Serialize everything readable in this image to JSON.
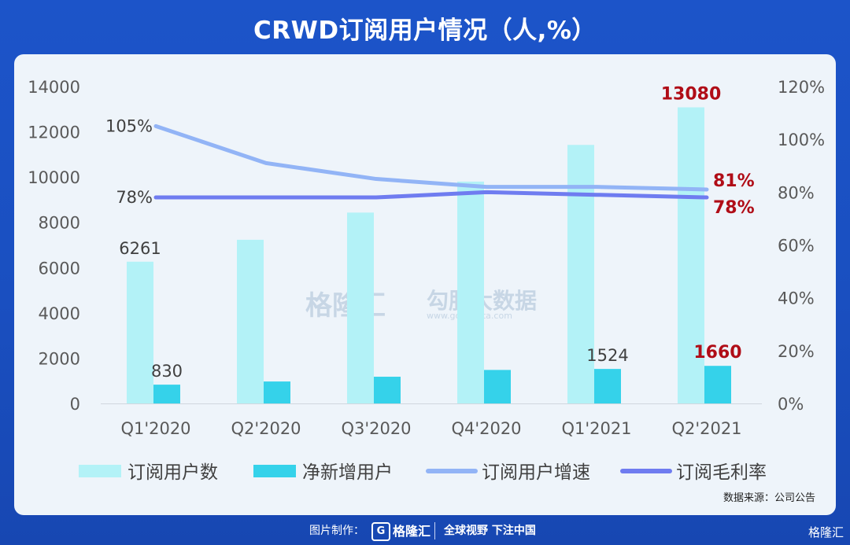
{
  "title": "CRWD订阅用户情况（人,%）",
  "source": "数据来源：公司公告",
  "footer": {
    "credit": "图片制作：",
    "logo_mark": "G",
    "logo_text": "格隆汇",
    "slogan": "全球视野 下注中国"
  },
  "corner_logo": "格隆汇",
  "watermarks": {
    "left": "格隆汇",
    "right": "勾股大数据",
    "right_url": "www.gogudata.com"
  },
  "chart_data": {
    "type": "bar",
    "categories": [
      "Q1'2020",
      "Q2'2020",
      "Q3'2020",
      "Q4'2020",
      "Q1'2021",
      "Q2'2021"
    ],
    "series": [
      {
        "name": "订阅用户数",
        "kind": "bar",
        "axis": "left",
        "color": "#b3f2f7",
        "values": [
          6261,
          7230,
          8430,
          9800,
          11420,
          13080
        ]
      },
      {
        "name": "净新增用户",
        "kind": "bar",
        "axis": "left",
        "color": "#35d2ea",
        "values": [
          830,
          970,
          1180,
          1480,
          1524,
          1660
        ]
      },
      {
        "name": "订阅用户增速",
        "kind": "line",
        "axis": "right",
        "color": "#92b4f6",
        "values": [
          105,
          91,
          85,
          82,
          82,
          81
        ]
      },
      {
        "name": "订阅毛利率",
        "kind": "line",
        "axis": "right",
        "color": "#6f7cf0",
        "values": [
          78,
          78,
          78,
          80,
          79,
          78
        ]
      }
    ],
    "left_axis": {
      "ylim": [
        0,
        14000
      ],
      "ticks": [
        0,
        2000,
        4000,
        6000,
        8000,
        10000,
        12000,
        14000
      ]
    },
    "right_axis": {
      "ylim": [
        0,
        120
      ],
      "ticks": [
        "0%",
        "20%",
        "40%",
        "60%",
        "80%",
        "100%",
        "120%"
      ]
    },
    "data_labels": [
      {
        "series": 0,
        "index": 0,
        "text": "6261",
        "highlight": false
      },
      {
        "series": 1,
        "index": 0,
        "text": "830",
        "highlight": false
      },
      {
        "series": 0,
        "index": 5,
        "text": "13080",
        "highlight": true
      },
      {
        "series": 1,
        "index": 4,
        "text": "1524",
        "highlight": false
      },
      {
        "series": 1,
        "index": 5,
        "text": "1660",
        "highlight": true
      },
      {
        "series": 2,
        "index": 0,
        "text": "105%",
        "highlight": false
      },
      {
        "series": 3,
        "index": 0,
        "text": "78%",
        "highlight": false
      },
      {
        "series": 2,
        "index": 5,
        "text": "81%",
        "highlight": true
      },
      {
        "series": 3,
        "index": 5,
        "text": "78%",
        "highlight": true
      }
    ],
    "legend_position": "bottom",
    "grid": false,
    "highlight_color": "#b00d17"
  }
}
